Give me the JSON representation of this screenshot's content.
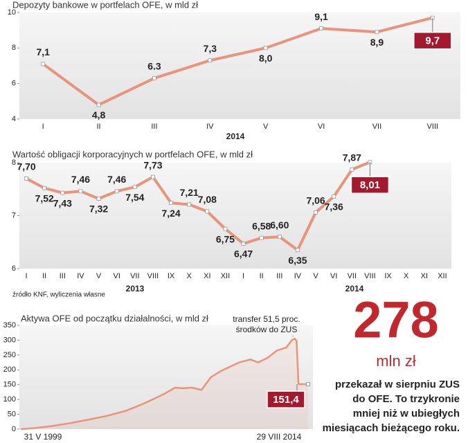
{
  "chart_data": [
    {
      "type": "line",
      "title": "Depozyty bankowe w portfelach OFE, w mld zł",
      "categories": [
        "I",
        "II",
        "III",
        "IV",
        "V",
        "VI",
        "VII",
        "VIII"
      ],
      "year_labels": [
        "2014"
      ],
      "values": [
        7.1,
        4.8,
        6.3,
        7.3,
        8.0,
        9.1,
        8.9,
        9.7
      ],
      "value_labels": [
        "7,1",
        "4,8",
        "6.3",
        "7,3",
        "8,0",
        "9,1",
        "8,9",
        "9,7"
      ],
      "color": "#e8937a",
      "highlight_color": "#a31a30",
      "ylim": [
        4,
        10
      ],
      "yticks": [
        4,
        6,
        8,
        10
      ]
    },
    {
      "type": "line",
      "title": "Wartość obligacji korporacyjnych w portfelach OFE, w mld zł",
      "categories": [
        "I",
        "II",
        "III",
        "IV",
        "V",
        "VI",
        "VII",
        "VIII",
        "IX",
        "X",
        "XI",
        "XII",
        "I",
        "II",
        "III",
        "IV",
        "V",
        "VI",
        "VII",
        "VIII",
        "IX",
        "X",
        "XI",
        "XII"
      ],
      "year_labels": [
        "2013",
        "2014"
      ],
      "values": [
        7.7,
        7.52,
        7.43,
        7.46,
        7.32,
        7.46,
        7.54,
        7.73,
        7.24,
        7.21,
        7.08,
        6.75,
        6.47,
        6.58,
        6.6,
        6.35,
        7.06,
        7.36,
        7.87,
        8.01,
        null,
        null,
        null,
        null
      ],
      "value_labels": [
        "7,70",
        "7,52",
        "7,43",
        "7,46",
        "7,32",
        "7,46",
        "7,54",
        "7,73",
        "7,24",
        "7,21",
        "7,08",
        "6,75",
        "6,47",
        "6,58",
        "6,60",
        "6,35",
        "7,06",
        "7,36",
        "7,87",
        "8,01",
        null,
        null,
        null,
        null
      ],
      "color": "#e8937a",
      "highlight_color": "#a31a30",
      "ylim": [
        6,
        8
      ],
      "yticks": [
        6,
        7,
        8
      ]
    },
    {
      "type": "area",
      "title": "Aktywa OFE od początku działalności, w mld zł",
      "x": [
        1999.41,
        2000,
        2001,
        2002,
        2003,
        2004,
        2005,
        2006,
        2007,
        2007.6,
        2008,
        2008.5,
        2009,
        2009.5,
        2010,
        2010.5,
        2011,
        2011.6,
        2012,
        2012.5,
        2013,
        2013.5,
        2013.8,
        2013.95,
        2014.05,
        2014.15,
        2014.66
      ],
      "values": [
        0,
        3,
        10,
        20,
        32,
        45,
        62,
        88,
        118,
        140,
        138,
        140,
        132,
        175,
        195,
        210,
        225,
        235,
        225,
        240,
        265,
        275,
        300,
        305,
        298,
        152,
        151.4
      ],
      "end_label": "151,4",
      "x_labels": [
        "31 V 1999",
        "29 VIII 2014"
      ],
      "annotation": [
        "transfer 51,5 proc.",
        "środków do ZUS"
      ],
      "color": "#e8937a",
      "highlight_color": "#a31a30",
      "xlim": [
        1999.41,
        2014.66
      ],
      "ylim": [
        0,
        350
      ],
      "yticks": [
        0,
        50,
        100,
        150,
        200,
        250,
        300,
        350
      ]
    }
  ],
  "source": "źródło KNF, wyliczenia własne",
  "callout": {
    "number": "278",
    "unit": "mln zł",
    "text": [
      "przekazał w sierpniu ZUS",
      "do OFE. To trzykronie",
      "mniej niż w ubiegłych",
      "miesiącach bieżącego roku."
    ]
  }
}
